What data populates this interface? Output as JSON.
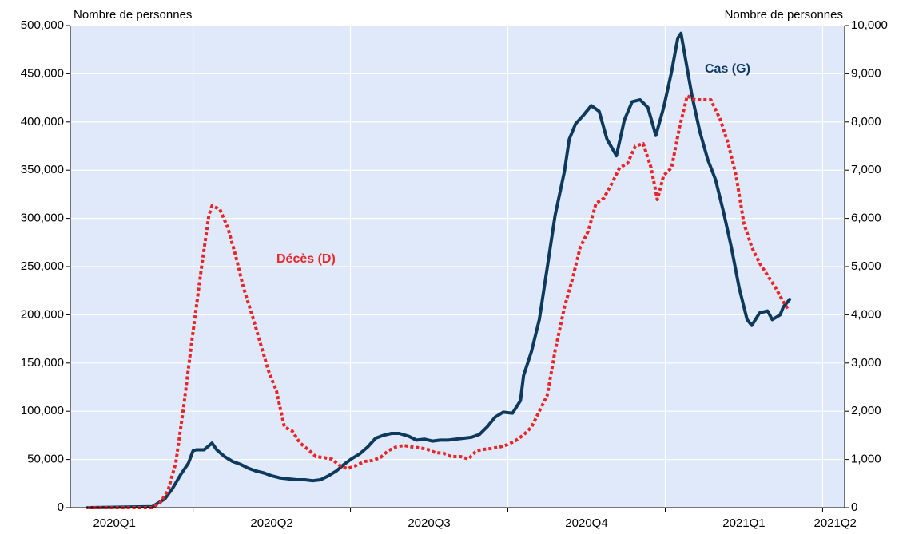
{
  "chart_data": {
    "type": "line",
    "y_label": "Nombre de personnes",
    "y2_label": "Nombre de personnes",
    "annotations": [
      "Cas (G)",
      "Décès (D)"
    ],
    "background": "#dfe9f9",
    "grid": true,
    "xlim": [
      0.22,
      5.14
    ],
    "xticks": [
      {
        "value": 0.5,
        "label": "2020Q1"
      },
      {
        "value": 1.5,
        "label": "2020Q2"
      },
      {
        "value": 2.5,
        "label": "2020Q3"
      },
      {
        "value": 3.5,
        "label": "2020Q4"
      },
      {
        "value": 4.5,
        "label": "2021Q1"
      },
      {
        "value": 5.08,
        "label": "2021Q2"
      }
    ],
    "xgrid": [
      1,
      2,
      3,
      4,
      5
    ],
    "ylim": [
      0,
      500000
    ],
    "yticks": [
      0,
      {
        "value": 50000,
        "label": "50,000"
      },
      {
        "value": 100000,
        "label": "100,000"
      },
      {
        "value": 150000,
        "label": "150,000"
      },
      {
        "value": 200000,
        "label": "200,000"
      },
      {
        "value": 250000,
        "label": "250,000"
      },
      {
        "value": 300000,
        "label": "300,000"
      },
      {
        "value": 350000,
        "label": "350,000"
      },
      {
        "value": 400000,
        "label": "400,000"
      },
      {
        "value": 450000,
        "label": "450,000"
      },
      {
        "value": 500000,
        "label": "500,000"
      }
    ],
    "y2lim": [
      0,
      10000
    ],
    "y2ticks": [
      0,
      {
        "value": 1000,
        "label": "1,000"
      },
      {
        "value": 2000,
        "label": "2,000"
      },
      {
        "value": 3000,
        "label": "3,000"
      },
      {
        "value": 4000,
        "label": "4,000"
      },
      {
        "value": 5000,
        "label": "5,000"
      },
      {
        "value": 6000,
        "label": "6,000"
      },
      {
        "value": 7000,
        "label": "7,000"
      },
      {
        "value": 8000,
        "label": "8,000"
      },
      {
        "value": 9000,
        "label": "9,000"
      },
      {
        "value": 10000,
        "label": "10,000"
      }
    ],
    "series": [
      {
        "name": "Cas (G)",
        "color": "#0d3a5c",
        "dash": false,
        "axis": "y",
        "x": [
          0.33,
          0.74,
          0.82,
          0.87,
          0.92,
          0.97,
          1.0,
          1.02,
          1.07,
          1.12,
          1.15,
          1.2,
          1.25,
          1.3,
          1.35,
          1.4,
          1.45,
          1.5,
          1.55,
          1.6,
          1.66,
          1.71,
          1.76,
          1.81,
          1.86,
          1.91,
          1.96,
          2.01,
          2.06,
          2.11,
          2.16,
          2.21,
          2.26,
          2.31,
          2.37,
          2.42,
          2.47,
          2.52,
          2.57,
          2.62,
          2.67,
          2.72,
          2.77,
          2.82,
          2.87,
          2.92,
          2.97,
          3.03,
          3.08,
          3.1,
          3.15,
          3.2,
          3.25,
          3.3,
          3.36,
          3.39,
          3.43,
          3.48,
          3.53,
          3.58,
          3.63,
          3.69,
          3.74,
          3.79,
          3.84,
          3.89,
          3.94,
          3.99,
          4.04,
          4.08,
          4.1,
          4.13,
          4.17,
          4.22,
          4.27,
          4.32,
          4.37,
          4.42,
          4.47,
          4.52,
          4.55,
          4.6,
          4.65,
          4.68,
          4.73,
          4.75,
          4.79
        ],
        "values": [
          0,
          1000,
          9000,
          20000,
          34000,
          46000,
          59000,
          60000,
          60000,
          67000,
          60000,
          53000,
          48000,
          45000,
          41000,
          38000,
          36000,
          33000,
          31000,
          30000,
          29000,
          29000,
          28000,
          29000,
          33000,
          38000,
          45000,
          51000,
          56000,
          63000,
          72000,
          75000,
          77000,
          77000,
          74000,
          70000,
          71000,
          69000,
          70000,
          70000,
          71000,
          72000,
          73000,
          76000,
          84000,
          94000,
          99000,
          98000,
          111000,
          137000,
          162000,
          195000,
          249000,
          303000,
          349000,
          382000,
          398000,
          407000,
          417000,
          411000,
          382000,
          365000,
          402000,
          421000,
          423000,
          415000,
          386000,
          415000,
          452000,
          487000,
          492000,
          464000,
          427000,
          390000,
          361000,
          340000,
          307000,
          270000,
          228000,
          195000,
          189000,
          202000,
          204000,
          195000,
          200000,
          208000,
          216000
        ]
      },
      {
        "name": "Décès (D)",
        "color": "#e8262a",
        "dash": true,
        "axis": "y2",
        "x": [
          0.33,
          0.74,
          0.79,
          0.84,
          0.89,
          0.94,
          0.99,
          1.05,
          1.1,
          1.12,
          1.17,
          1.22,
          1.27,
          1.32,
          1.38,
          1.43,
          1.48,
          1.53,
          1.58,
          1.63,
          1.68,
          1.73,
          1.78,
          1.83,
          1.88,
          1.93,
          1.98,
          2.04,
          2.09,
          2.14,
          2.19,
          2.24,
          2.29,
          2.34,
          2.39,
          2.44,
          2.49,
          2.54,
          2.59,
          2.64,
          2.7,
          2.75,
          2.8,
          2.85,
          2.9,
          2.95,
          3.0,
          3.05,
          3.1,
          3.15,
          3.2,
          3.25,
          3.3,
          3.36,
          3.41,
          3.46,
          3.51,
          3.56,
          3.61,
          3.66,
          3.71,
          3.76,
          3.81,
          3.86,
          3.91,
          3.95,
          3.99,
          4.04,
          4.09,
          4.14,
          4.19,
          4.24,
          4.29,
          4.35,
          4.4,
          4.45,
          4.5,
          4.55,
          4.6,
          4.65,
          4.7,
          4.75,
          4.78
        ],
        "values": [
          0,
          0,
          100,
          350,
          930,
          2090,
          3410,
          4900,
          6060,
          6260,
          6190,
          5810,
          5230,
          4570,
          3940,
          3380,
          2830,
          2420,
          1670,
          1590,
          1340,
          1210,
          1060,
          1040,
          1010,
          880,
          810,
          880,
          960,
          980,
          1040,
          1180,
          1260,
          1290,
          1260,
          1240,
          1210,
          1140,
          1130,
          1060,
          1060,
          1010,
          1180,
          1210,
          1230,
          1260,
          1310,
          1390,
          1510,
          1670,
          2000,
          2330,
          3250,
          4160,
          4740,
          5400,
          5730,
          6310,
          6420,
          6720,
          7050,
          7140,
          7500,
          7550,
          7050,
          6390,
          6890,
          7050,
          7880,
          8540,
          8460,
          8460,
          8460,
          8050,
          7550,
          6890,
          5890,
          5400,
          5070,
          4820,
          4570,
          4270,
          4120
        ]
      }
    ]
  }
}
